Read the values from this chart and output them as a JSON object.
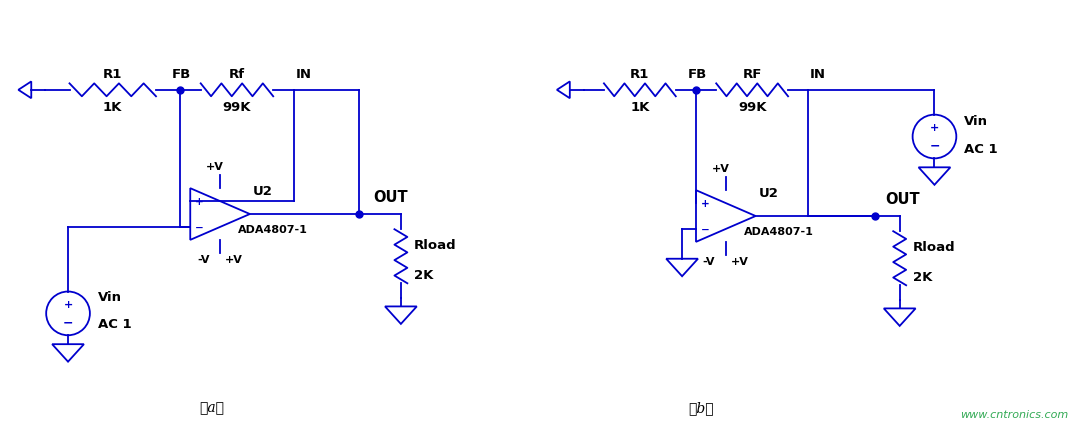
{
  "circuit_color": "#0000CD",
  "bg_color": "#FFFFFF",
  "label_color": "#000000",
  "website_color": "#33AA55",
  "figsize": [
    10.8,
    4.35
  ],
  "dpi": 100,
  "label_a": "（a）",
  "label_b": "（b）",
  "website": "www.cntronics.com"
}
